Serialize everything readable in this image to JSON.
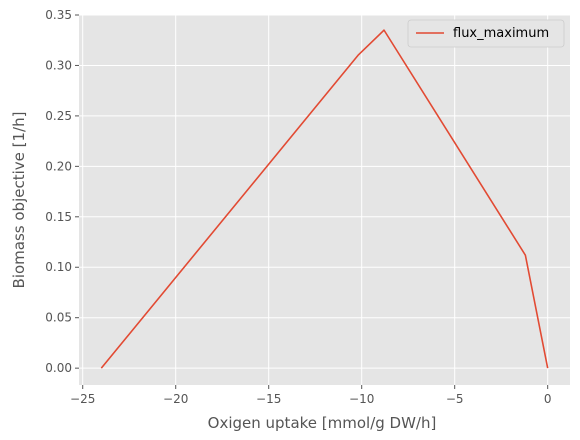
{
  "chart_data": {
    "type": "line",
    "title": "",
    "xlabel": "Oxigen uptake [mmol/g DW/h]",
    "ylabel": "Biomass objective [1/h]",
    "xlim": [
      -25.2,
      1.2
    ],
    "ylim": [
      -0.0167,
      0.35
    ],
    "xticks": [
      -25,
      -20,
      -15,
      -10,
      -5,
      0
    ],
    "xtick_labels": [
      "−25",
      "−20",
      "−15",
      "−10",
      "−5",
      "0"
    ],
    "yticks": [
      0.0,
      0.05,
      0.1,
      0.15,
      0.2,
      0.25,
      0.3,
      0.35
    ],
    "ytick_labels": [
      "0.00",
      "0.05",
      "0.10",
      "0.15",
      "0.20",
      "0.25",
      "0.30",
      "0.35"
    ],
    "grid": true,
    "legend_position": "top-right",
    "series": [
      {
        "name": "flux_maximum",
        "color": "#E24A33",
        "x": [
          -24.0,
          -10.2,
          -8.8,
          -1.2,
          0.0
        ],
        "y": [
          0.0,
          0.31,
          0.335,
          0.112,
          0.0
        ]
      }
    ]
  },
  "colors": {
    "plot_background": "#E5E5E5",
    "grid": "#FFFFFF",
    "line": "#E24A33"
  }
}
